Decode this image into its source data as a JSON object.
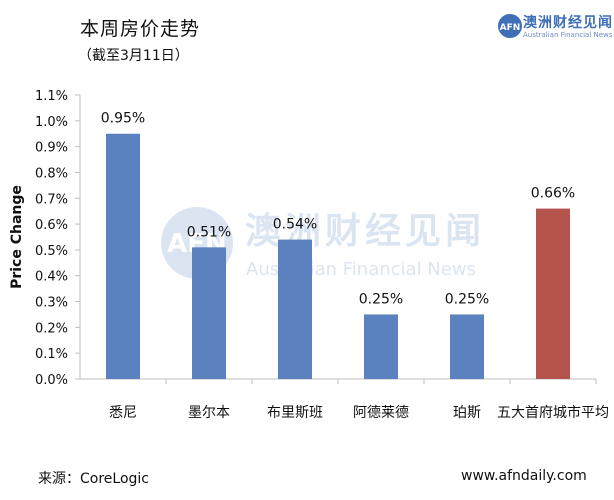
{
  "header": {
    "title": "本周房价走势",
    "subtitle": "（截至3月11日）"
  },
  "brand": {
    "logo_text": "AFN",
    "name": "澳洲财经见闻",
    "tagline": "Australian Financial News"
  },
  "watermark": {
    "name": "澳洲财经见闻",
    "tagline": "Australian Financial News"
  },
  "footer": {
    "source": "来源：CoreLogic",
    "website": "www.afndaily.com"
  },
  "colors": {
    "bar_default": "#5b82bf",
    "bar_highlight": "#b4524c",
    "axis": "#bfbfbf",
    "brand": "#3f6fb6"
  },
  "chart_data": {
    "type": "bar",
    "categories": [
      "悉尼",
      "墨尔本",
      "布里斯班",
      "阿德莱德",
      "珀斯",
      "五大首府城市平均"
    ],
    "values": [
      0.95,
      0.51,
      0.54,
      0.25,
      0.25,
      0.66
    ],
    "data_labels": [
      "0.95%",
      "0.51%",
      "0.54%",
      "0.25%",
      "0.25%",
      "0.66%"
    ],
    "highlight_index": 5,
    "ylabel": "Price Change",
    "xlabel": "",
    "ylim": [
      0,
      1.1
    ],
    "yticks": [
      "0.0%",
      "0.1%",
      "0.2%",
      "0.3%",
      "0.4%",
      "0.5%",
      "0.6%",
      "0.7%",
      "0.8%",
      "0.9%",
      "1.0%",
      "1.1%"
    ],
    "grid": false,
    "legend": "none"
  }
}
